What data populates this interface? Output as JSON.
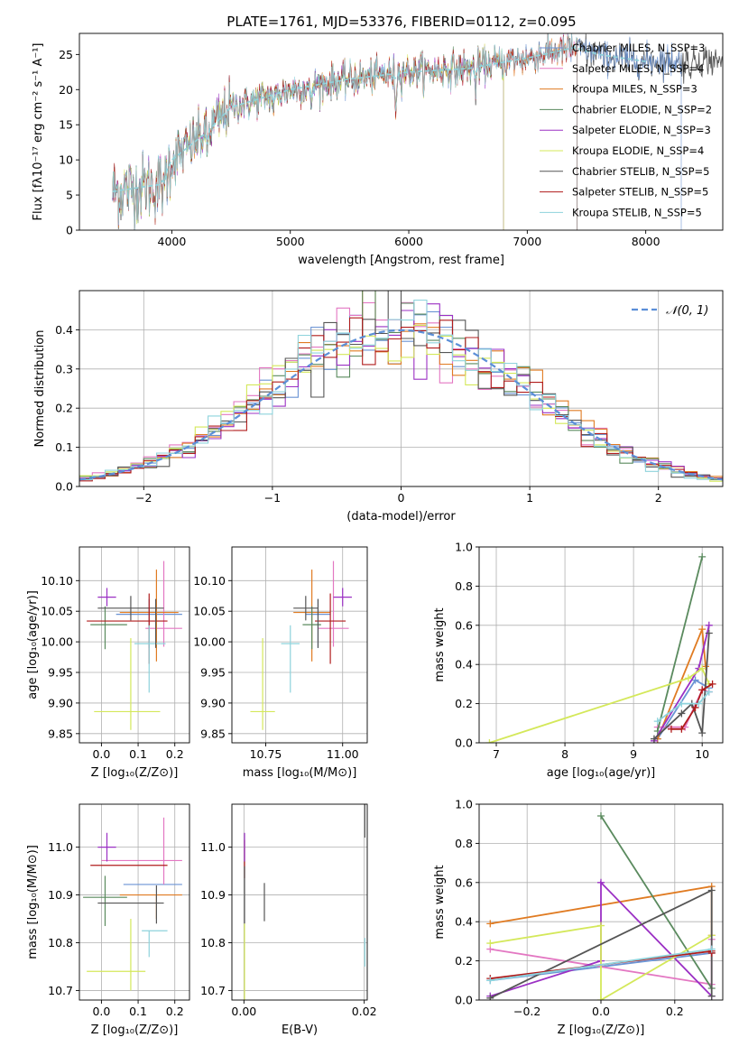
{
  "figure_title": "PLATE=1761, MJD=53376, FIBERID=0112, z=0.095",
  "colors": {
    "chabrier_miles": "#6a93d4",
    "salpeter_miles": "#e377c2",
    "kroupa_miles": "#e07b22",
    "chabrier_elodie": "#5a8a5e",
    "salpeter_elodie": "#9b30c4",
    "kroupa_elodie": "#d4e85a",
    "chabrier_stelib": "#555555",
    "salpeter_stelib": "#b01c1c",
    "kroupa_stelib": "#8ed3dc",
    "gauss": "#5b8fd8"
  },
  "chart_data": [
    {
      "id": "spectrum",
      "type": "line",
      "xlabel": "wavelength [Angstrom, rest frame]",
      "ylabel": "Flux [fλ10⁻¹⁷ erg cm⁻² s⁻¹ A⁻¹]",
      "xlim": [
        3220,
        8650
      ],
      "ylim": [
        0,
        28
      ],
      "xticks": [
        4000,
        5000,
        6000,
        7000,
        8000
      ],
      "yticks": [
        0,
        5,
        10,
        15,
        20,
        25
      ],
      "grid": false,
      "legend_position": "right",
      "legend": [
        "Chabrier MILES, N_SSP=3",
        "Salpeter MILES, N_SSP=4",
        "Kroupa MILES, N_SSP=3",
        "Chabrier ELODIE, N_SSP=2",
        "Salpeter ELODIE, N_SSP=3",
        "Kroupa ELODIE, N_SSP=4",
        "Chabrier STELIB, N_SSP=5",
        "Salpeter STELIB, N_SSP=5",
        "Kroupa STELIB, N_SSP=5"
      ],
      "continuum": [
        [
          3500,
          5.5
        ],
        [
          3900,
          6.5
        ],
        [
          4000,
          10
        ],
        [
          4300,
          14
        ],
        [
          4500,
          17.5
        ],
        [
          5000,
          20
        ],
        [
          5500,
          21.5
        ],
        [
          6000,
          22.5
        ],
        [
          6500,
          23
        ],
        [
          7000,
          24.5
        ],
        [
          7400,
          26
        ],
        [
          7600,
          25
        ],
        [
          8000,
          24
        ]
      ],
      "absorption_lines": [
        [
          3933,
          4
        ],
        [
          4300,
          3
        ],
        [
          4861,
          2
        ],
        [
          5175,
          4
        ],
        [
          5890,
          5
        ],
        [
          6563,
          3
        ]
      ]
    },
    {
      "id": "residuals",
      "type": "histogram",
      "xlabel": "(data-model)/error",
      "ylabel": "Normed distribution",
      "xlim": [
        -2.5,
        2.5
      ],
      "ylim": [
        0,
        0.5
      ],
      "xticks": [
        -2,
        -1,
        0,
        1,
        2
      ],
      "yticks": [
        0.0,
        0.1,
        0.2,
        0.3,
        0.4
      ],
      "grid": true,
      "legend": "𝒩(0, 1)",
      "legend_position": "top-right",
      "bin_width": 0.1
    },
    {
      "id": "age_vs_z",
      "type": "errorbar",
      "xlabel": "Z [log₁₀(Z/Z⊙)]",
      "ylabel": "age  [log₁₀(age/yr)]",
      "xlim": [
        -0.06,
        0.24
      ],
      "ylim": [
        9.835,
        10.155
      ],
      "xticks": [
        0.0,
        0.1,
        0.2
      ],
      "yticks": [
        9.85,
        9.9,
        9.95,
        10.0,
        10.05,
        10.1
      ],
      "grid": true,
      "points": [
        {
          "m": "chabrier_miles",
          "x": 0.13,
          "y": 10.045,
          "xerr": [
            0.09,
            0.09
          ],
          "yerr": [
            0.055,
            0.025
          ]
        },
        {
          "m": "salpeter_miles",
          "x": 0.17,
          "y": 10.022,
          "xerr": [
            0.05,
            0.05
          ],
          "yerr": [
            0.03,
            0.11
          ]
        },
        {
          "m": "kroupa_miles",
          "x": 0.15,
          "y": 10.048,
          "xerr": [
            0.1,
            0.06
          ],
          "yerr": [
            0.08,
            0.07
          ]
        },
        {
          "m": "chabrier_elodie",
          "x": 0.01,
          "y": 10.028,
          "xerr": [
            0.04,
            0.06
          ],
          "yerr": [
            0.04,
            0.03
          ]
        },
        {
          "m": "salpeter_elodie",
          "x": 0.015,
          "y": 10.073,
          "xerr": [
            0.025,
            0.025
          ],
          "yerr": [
            0.015,
            0.015
          ]
        },
        {
          "m": "kroupa_elodie",
          "x": 0.08,
          "y": 9.886,
          "xerr": [
            0.1,
            0.08
          ],
          "yerr": [
            0.03,
            0.12
          ]
        },
        {
          "m": "chabrier_stelib",
          "x": 0.08,
          "y": 10.055,
          "xerr": [
            0.09,
            0.09
          ],
          "yerr": [
            0.02,
            0.02
          ]
        },
        {
          "m": "salpeter_stelib",
          "x": 0.13,
          "y": 10.034,
          "xerr": [
            0.17,
            0.05
          ],
          "yerr": [
            0.07,
            0.045
          ]
        },
        {
          "m": "kroupa_stelib",
          "x": 0.13,
          "y": 9.997,
          "xerr": [
            0.04,
            0.045
          ],
          "yerr": [
            0.08,
            0.03
          ]
        },
        {
          "m": "chabrier_stelib",
          "x": 0.148,
          "y": 10.03,
          "xerr": [
            0.0,
            0.0
          ],
          "yerr": [
            0.04,
            0.04
          ]
        }
      ]
    },
    {
      "id": "age_vs_mass",
      "type": "errorbar",
      "xlabel": "mass [log₁₀(M/M⊙)]",
      "ylabel": "",
      "xlim": [
        10.64,
        11.08
      ],
      "ylim": [
        9.835,
        10.155
      ],
      "xticks": [
        10.75,
        11.0
      ],
      "yticks": [
        9.85,
        9.9,
        9.95,
        10.0,
        10.05,
        10.1
      ],
      "grid": true,
      "points": [
        {
          "m": "chabrier_miles",
          "x": 10.92,
          "y": 10.045,
          "xerr": [
            0.04,
            0.04
          ],
          "yerr": [
            0.055,
            0.025
          ]
        },
        {
          "m": "salpeter_miles",
          "x": 10.97,
          "y": 10.022,
          "xerr": [
            0.05,
            0.05
          ],
          "yerr": [
            0.03,
            0.11
          ]
        },
        {
          "m": "kroupa_miles",
          "x": 10.9,
          "y": 10.048,
          "xerr": [
            0.06,
            0.06
          ],
          "yerr": [
            0.08,
            0.07
          ]
        },
        {
          "m": "chabrier_elodie",
          "x": 10.9,
          "y": 10.028,
          "xerr": [
            0.03,
            0.03
          ],
          "yerr": [
            0.04,
            0.03
          ]
        },
        {
          "m": "salpeter_elodie",
          "x": 11.0,
          "y": 10.073,
          "xerr": [
            0.03,
            0.03
          ],
          "yerr": [
            0.015,
            0.015
          ]
        },
        {
          "m": "kroupa_elodie",
          "x": 10.74,
          "y": 9.886,
          "xerr": [
            0.04,
            0.04
          ],
          "yerr": [
            0.03,
            0.12
          ]
        },
        {
          "m": "chabrier_stelib",
          "x": 10.88,
          "y": 10.055,
          "xerr": [
            0.04,
            0.04
          ],
          "yerr": [
            0.02,
            0.02
          ]
        },
        {
          "m": "salpeter_stelib",
          "x": 10.96,
          "y": 10.034,
          "xerr": [
            0.05,
            0.05
          ],
          "yerr": [
            0.07,
            0.045
          ]
        },
        {
          "m": "kroupa_stelib",
          "x": 10.83,
          "y": 9.997,
          "xerr": [
            0.03,
            0.03
          ],
          "yerr": [
            0.08,
            0.03
          ]
        },
        {
          "m": "chabrier_stelib",
          "x": 10.92,
          "y": 10.03,
          "xerr": [
            0.0,
            0.0
          ],
          "yerr": [
            0.04,
            0.04
          ]
        }
      ]
    },
    {
      "id": "weight_vs_age",
      "type": "line",
      "xlabel": "age  [log₁₀(age/yr)]",
      "ylabel": "mass weight",
      "xlim": [
        6.75,
        10.3
      ],
      "ylim": [
        0,
        1.0
      ],
      "xticks": [
        7,
        8,
        9,
        10
      ],
      "yticks": [
        0.0,
        0.2,
        0.4,
        0.6,
        0.8,
        1.0
      ],
      "grid": true,
      "series": [
        {
          "m": "chabrier_miles",
          "x": [
            9.35,
            9.9,
            10.1
          ],
          "y": [
            0.02,
            0.32,
            0.28
          ]
        },
        {
          "m": "salpeter_miles",
          "x": [
            9.35,
            9.75,
            10.0,
            10.1
          ],
          "y": [
            0.08,
            0.08,
            0.27,
            0.26
          ]
        },
        {
          "m": "kroupa_miles",
          "x": [
            9.35,
            10.0,
            10.05
          ],
          "y": [
            0.02,
            0.58,
            0.39
          ]
        },
        {
          "m": "chabrier_elodie",
          "x": [
            9.35,
            10.0
          ],
          "y": [
            0.06,
            0.95
          ]
        },
        {
          "m": "salpeter_elodie",
          "x": [
            9.3,
            9.95,
            10.1
          ],
          "y": [
            0.01,
            0.38,
            0.6
          ]
        },
        {
          "m": "kroupa_elodie",
          "x": [
            6.9,
            9.8,
            10.0,
            10.1
          ],
          "y": [
            0.0,
            0.33,
            0.38,
            0.3
          ]
        },
        {
          "m": "chabrier_stelib",
          "x": [
            9.3,
            9.7,
            9.85,
            10.0,
            10.1
          ],
          "y": [
            0.02,
            0.15,
            0.2,
            0.05,
            0.56
          ]
        },
        {
          "m": "salpeter_stelib",
          "x": [
            9.55,
            9.7,
            9.9,
            10.0,
            10.15
          ],
          "y": [
            0.07,
            0.07,
            0.18,
            0.27,
            0.3
          ]
        },
        {
          "m": "kroupa_stelib",
          "x": [
            9.35,
            9.7,
            9.95,
            10.1
          ],
          "y": [
            0.11,
            0.2,
            0.2,
            0.26
          ]
        }
      ]
    },
    {
      "id": "mass_vs_z",
      "type": "errorbar",
      "xlabel": "Z [log₁₀(Z/Z⊙)]",
      "ylabel": "mass [log₁₀(M/M⊙)]",
      "xlim": [
        -0.06,
        0.24
      ],
      "ylim": [
        10.68,
        11.09
      ],
      "xticks": [
        0.0,
        0.1,
        0.2
      ],
      "yticks": [
        10.7,
        10.8,
        10.9,
        11.0
      ],
      "grid": true,
      "points": [
        {
          "m": "chabrier_miles",
          "x": 0.15,
          "y": 10.922,
          "xerr": [
            0.09,
            0.07
          ],
          "yerr": [
            0.0,
            0.0
          ]
        },
        {
          "m": "salpeter_miles",
          "x": 0.17,
          "y": 10.972,
          "xerr": [
            0.17,
            0.05
          ],
          "yerr": [
            0.05,
            0.09
          ]
        },
        {
          "m": "kroupa_miles",
          "x": 0.15,
          "y": 10.9,
          "xerr": [
            0.1,
            0.07
          ],
          "yerr": [
            0.05,
            0.0
          ]
        },
        {
          "m": "chabrier_elodie",
          "x": 0.01,
          "y": 10.895,
          "xerr": [
            0.06,
            0.06
          ],
          "yerr": [
            0.06,
            0.045
          ]
        },
        {
          "m": "salpeter_elodie",
          "x": 0.015,
          "y": 11.0,
          "xerr": [
            0.025,
            0.025
          ],
          "yerr": [
            0.03,
            0.03
          ]
        },
        {
          "m": "kroupa_elodie",
          "x": 0.08,
          "y": 10.74,
          "xerr": [
            0.12,
            0.04
          ],
          "yerr": [
            0.04,
            0.11
          ]
        },
        {
          "m": "chabrier_stelib",
          "x": 0.08,
          "y": 10.883,
          "xerr": [
            0.09,
            0.09
          ],
          "yerr": [
            0.0,
            0.0
          ]
        },
        {
          "m": "salpeter_stelib",
          "x": 0.06,
          "y": 10.962,
          "xerr": [
            0.09,
            0.12
          ],
          "yerr": [
            0.0,
            0.0
          ]
        },
        {
          "m": "kroupa_stelib",
          "x": 0.13,
          "y": 10.825,
          "xerr": [
            0.02,
            0.05
          ],
          "yerr": [
            0.055,
            0.0
          ]
        },
        {
          "m": "chabrier_stelib",
          "x": 0.15,
          "y": 10.88,
          "xerr": [
            0.0,
            0.0
          ],
          "yerr": [
            0.04,
            0.04
          ]
        }
      ]
    },
    {
      "id": "mass_vs_ebv",
      "type": "errorbar",
      "xlabel": "E(B-V)",
      "ylabel": "",
      "xlim": [
        -0.002,
        0.0205
      ],
      "ylim": [
        10.68,
        11.09
      ],
      "xticks": [
        0.0,
        0.02
      ],
      "yticks": [
        10.7,
        10.8,
        10.9,
        11.0
      ],
      "grid": true,
      "points": [
        {
          "m": "salpeter_stelib",
          "x": 0.0001,
          "y": 10.985,
          "xerr": [
            0,
            0
          ],
          "yerr": [
            0.05,
            0.03
          ]
        },
        {
          "m": "salpeter_elodie",
          "x": 0.0001,
          "y": 11.0,
          "xerr": [
            0,
            0
          ],
          "yerr": [
            0.03,
            0.03
          ]
        },
        {
          "m": "chabrier_stelib",
          "x": 0.0001,
          "y": 10.9,
          "xerr": [
            0,
            0
          ],
          "yerr": [
            0.06,
            0.06
          ]
        },
        {
          "m": "kroupa_elodie",
          "x": 0.0001,
          "y": 10.74,
          "xerr": [
            0,
            0
          ],
          "yerr": [
            0.06,
            0.1
          ]
        },
        {
          "m": "chabrier_stelib",
          "x": 0.0034,
          "y": 10.885,
          "xerr": [
            0,
            0
          ],
          "yerr": [
            0.04,
            0.04
          ]
        },
        {
          "m": "kroupa_stelib",
          "x": 0.0201,
          "y": 10.78,
          "xerr": [
            0,
            0
          ],
          "yerr": [
            0.03,
            0.03
          ]
        },
        {
          "m": "chabrier_stelib",
          "x": 0.0201,
          "y": 11.06,
          "xerr": [
            0,
            0
          ],
          "yerr": [
            0.04,
            0.04
          ]
        }
      ]
    },
    {
      "id": "weight_vs_z",
      "type": "line",
      "xlabel": "Z [log₁₀(Z/Z⊙)]",
      "ylabel": "mass weight",
      "xlim": [
        -0.33,
        0.33
      ],
      "ylim": [
        0,
        1.0
      ],
      "xticks": [
        -0.2,
        0.0,
        0.2
      ],
      "yticks": [
        0.0,
        0.2,
        0.4,
        0.6,
        0.8,
        1.0
      ],
      "grid": true,
      "series": [
        {
          "m": "chabrier_miles",
          "x": [
            -0.3,
            0.3
          ],
          "y": [
            0.1,
            0.24
          ]
        },
        {
          "m": "salpeter_miles",
          "x": [
            -0.3,
            0.3,
            0.3
          ],
          "y": [
            0.26,
            0.08,
            0.31
          ]
        },
        {
          "m": "kroupa_miles",
          "x": [
            -0.3,
            0.3,
            0.3
          ],
          "y": [
            0.39,
            0.58,
            0.33
          ]
        },
        {
          "m": "chabrier_elodie",
          "x": [
            0.0,
            0.3
          ],
          "y": [
            0.94,
            0.06
          ]
        },
        {
          "m": "salpeter_elodie",
          "x": [
            -0.3,
            0.0,
            0.0,
            0.3
          ],
          "y": [
            0.02,
            0.2,
            0.6,
            0.02
          ]
        },
        {
          "m": "kroupa_elodie",
          "x": [
            -0.3,
            0.0,
            0.0,
            0.3
          ],
          "y": [
            0.29,
            0.38,
            0.0,
            0.33
          ]
        },
        {
          "m": "chabrier_stelib",
          "x": [
            -0.3,
            0.3,
            0.3
          ],
          "y": [
            0.01,
            0.56,
            0.02
          ]
        },
        {
          "m": "salpeter_stelib",
          "x": [
            -0.3,
            0.3,
            0.3
          ],
          "y": [
            0.11,
            0.25,
            0.24
          ]
        },
        {
          "m": "kroupa_stelib",
          "x": [
            -0.3,
            0.3
          ],
          "y": [
            0.1,
            0.26
          ]
        }
      ]
    }
  ]
}
